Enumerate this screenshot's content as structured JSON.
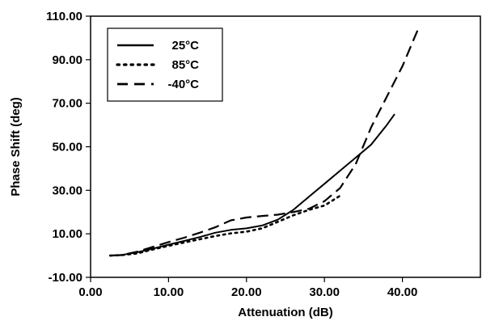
{
  "chart_data": {
    "type": "line",
    "title": "",
    "xlabel": "Attenuation (dB)",
    "ylabel": "Phase Shift (deg)",
    "xlim": [
      0,
      50
    ],
    "ylim": [
      -10,
      110
    ],
    "xticks": [
      "0.00",
      "10.00",
      "20.00",
      "30.00",
      "40.00"
    ],
    "yticks": [
      "-10.00",
      "10.00",
      "30.00",
      "50.00",
      "70.00",
      "90.00",
      "110.00"
    ],
    "grid": false,
    "legend_position": "top-left",
    "series": [
      {
        "name": "25°C",
        "style": "solid",
        "points": [
          [
            2.5,
            0
          ],
          [
            4,
            0.3
          ],
          [
            6,
            1.5
          ],
          [
            8,
            3.2
          ],
          [
            10,
            5
          ],
          [
            12,
            6.7
          ],
          [
            14,
            8.5
          ],
          [
            16,
            10.5
          ],
          [
            18,
            11.8
          ],
          [
            20,
            12.5
          ],
          [
            22,
            13.8
          ],
          [
            24,
            16.5
          ],
          [
            26,
            21
          ],
          [
            28,
            27
          ],
          [
            30,
            33
          ],
          [
            32,
            39
          ],
          [
            34,
            45
          ],
          [
            36,
            51
          ],
          [
            38,
            60
          ],
          [
            39,
            65
          ]
        ]
      },
      {
        "name": "85°C",
        "style": "dotted",
        "points": [
          [
            2.5,
            0
          ],
          [
            4,
            0.2
          ],
          [
            6,
            1
          ],
          [
            8,
            2.8
          ],
          [
            10,
            4.5
          ],
          [
            12,
            6
          ],
          [
            14,
            7.5
          ],
          [
            16,
            9
          ],
          [
            18,
            10.2
          ],
          [
            20,
            11
          ],
          [
            22,
            12.5
          ],
          [
            24,
            15.5
          ],
          [
            26,
            18.5
          ],
          [
            28,
            21
          ],
          [
            30,
            23
          ],
          [
            32,
            27.5
          ]
        ]
      },
      {
        "name": "-40°C",
        "style": "dashed",
        "points": [
          [
            2.5,
            0
          ],
          [
            4,
            0.2
          ],
          [
            6,
            1.8
          ],
          [
            8,
            4
          ],
          [
            10,
            6.2
          ],
          [
            12,
            8.2
          ],
          [
            14,
            10.5
          ],
          [
            16,
            13
          ],
          [
            18,
            16.2
          ],
          [
            20,
            17.5
          ],
          [
            22,
            18.2
          ],
          [
            24,
            18.8
          ],
          [
            26,
            20
          ],
          [
            28,
            21.5
          ],
          [
            30,
            25
          ],
          [
            32,
            31
          ],
          [
            34,
            42
          ],
          [
            36,
            59
          ],
          [
            38,
            73
          ],
          [
            40,
            87
          ],
          [
            42,
            104
          ]
        ]
      }
    ]
  }
}
